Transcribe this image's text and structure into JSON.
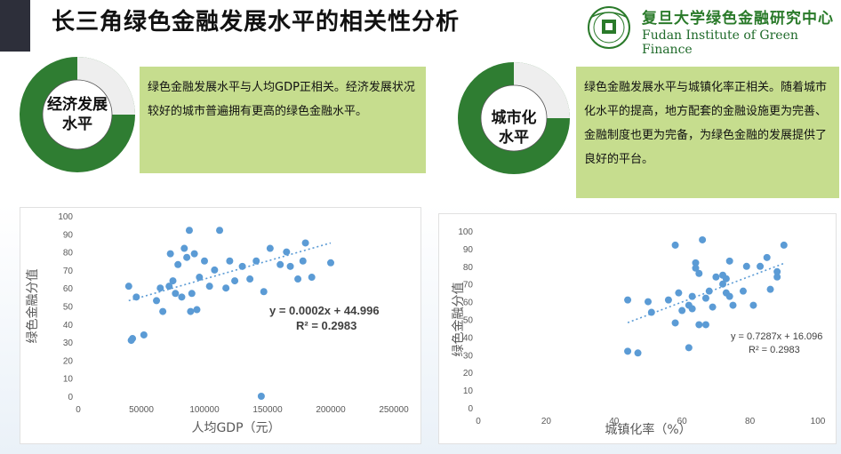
{
  "header": {
    "title": "长三角绿色金融发展水平的相关性分析",
    "logo_cn": "复旦大学绿色金融研究中心",
    "logo_en": "Fudan Institute of Green Finance",
    "logo_letters": "FIGF"
  },
  "colors": {
    "accent_green": "#2f7d32",
    "box_green": "#c6dd8e",
    "point_blue": "#5b9bd5"
  },
  "cards": [
    {
      "label_line1": "经济发展",
      "label_line2": "水平",
      "text": "绿色金融发展水平与人均GDP正相关。经济发展状况较好的城市普遍拥有更高的绿色金融水平。"
    },
    {
      "label_line1": "城市化",
      "label_line2": "水平",
      "text": "绿色金融发展水平与城镇化率正相关。随着城市化水平的提高，地方配套的金融设施更为完善、金融制度也更为完备，为绿色金融的发展提供了良好的平台。"
    }
  ],
  "chart_data": [
    {
      "type": "scatter",
      "xlabel": "人均GDP（元）",
      "ylabel": "绿色金融分值",
      "xlim": [
        0,
        250000
      ],
      "ylim": [
        0,
        100
      ],
      "x_ticks": [
        0,
        50000,
        100000,
        150000,
        200000,
        250000
      ],
      "y_ticks": [
        0,
        10,
        20,
        30,
        40,
        50,
        60,
        70,
        80,
        90,
        100
      ],
      "grid": false,
      "trendline": {
        "slope": 0.0002,
        "intercept": 44.996,
        "equation": "y = 0.0002x + 44.996",
        "r2": "R² = 0.2983"
      },
      "points": [
        [
          40000,
          61
        ],
        [
          42000,
          31
        ],
        [
          43000,
          32
        ],
        [
          46000,
          55
        ],
        [
          52000,
          34
        ],
        [
          62000,
          53
        ],
        [
          65000,
          60
        ],
        [
          67000,
          47
        ],
        [
          72000,
          61
        ],
        [
          73000,
          79
        ],
        [
          75000,
          64
        ],
        [
          77000,
          57
        ],
        [
          79000,
          73
        ],
        [
          82000,
          55
        ],
        [
          84000,
          82
        ],
        [
          86000,
          77
        ],
        [
          88000,
          92
        ],
        [
          89000,
          47
        ],
        [
          90000,
          57
        ],
        [
          92000,
          79
        ],
        [
          94000,
          48
        ],
        [
          96000,
          66
        ],
        [
          100000,
          75
        ],
        [
          104000,
          61
        ],
        [
          108000,
          70
        ],
        [
          112000,
          92
        ],
        [
          117000,
          60
        ],
        [
          120000,
          75
        ],
        [
          124000,
          64
        ],
        [
          130000,
          72
        ],
        [
          136000,
          65
        ],
        [
          141000,
          75
        ],
        [
          145000,
          0
        ],
        [
          147000,
          58
        ],
        [
          152000,
          82
        ],
        [
          160000,
          73
        ],
        [
          165000,
          80
        ],
        [
          168000,
          72
        ],
        [
          174000,
          65
        ],
        [
          178000,
          75
        ],
        [
          180000,
          85
        ],
        [
          185000,
          66
        ],
        [
          200000,
          74
        ]
      ]
    },
    {
      "type": "scatter",
      "xlabel": "城镇化率（%）",
      "ylabel": "绿色金融分值",
      "xlim": [
        0,
        100
      ],
      "ylim": [
        0,
        100
      ],
      "x_ticks": [
        0,
        20,
        40,
        60,
        80,
        100
      ],
      "y_ticks": [
        0,
        10,
        20,
        30,
        40,
        50,
        60,
        70,
        80,
        90,
        100
      ],
      "grid": false,
      "trendline": {
        "slope": 0.7287,
        "intercept": 16.096,
        "equation": "y = 0.7287x + 16.096",
        "r2": "R² = 0.2983"
      },
      "points": [
        [
          44,
          61
        ],
        [
          44,
          32
        ],
        [
          47,
          31
        ],
        [
          50,
          60
        ],
        [
          51,
          54
        ],
        [
          56,
          61
        ],
        [
          58,
          92
        ],
        [
          58,
          48
        ],
        [
          59,
          65
        ],
        [
          60,
          55
        ],
        [
          62,
          58
        ],
        [
          62,
          34
        ],
        [
          63,
          63
        ],
        [
          63,
          56
        ],
        [
          64,
          82
        ],
        [
          64,
          79
        ],
        [
          65,
          76
        ],
        [
          65,
          47
        ],
        [
          66,
          95
        ],
        [
          67,
          47
        ],
        [
          67,
          62
        ],
        [
          68,
          66
        ],
        [
          69,
          57
        ],
        [
          70,
          74
        ],
        [
          72,
          75
        ],
        [
          72,
          70
        ],
        [
          73,
          65
        ],
        [
          73,
          73
        ],
        [
          74,
          63
        ],
        [
          74,
          83
        ],
        [
          75,
          58
        ],
        [
          78,
          66
        ],
        [
          79,
          80
        ],
        [
          81,
          58
        ],
        [
          83,
          80
        ],
        [
          85,
          85
        ],
        [
          86,
          67
        ],
        [
          88,
          74
        ],
        [
          88,
          77
        ],
        [
          90,
          92
        ]
      ]
    }
  ]
}
